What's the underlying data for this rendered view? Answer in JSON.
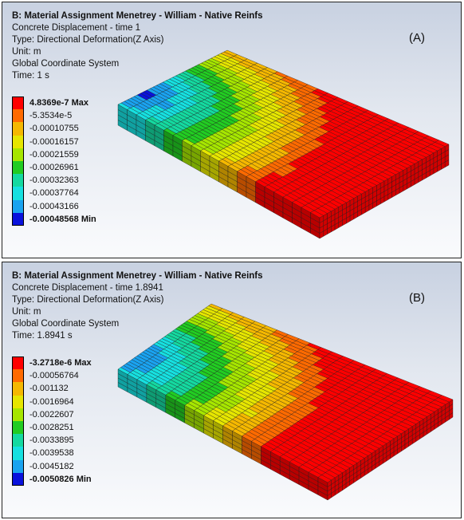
{
  "panels": [
    {
      "header": {
        "title": "B: Material Assignment Menetrey - William - Native Reinfs",
        "result": "Concrete Displacement - time 1",
        "type": "Type: Directional Deformation(Z Axis)",
        "unit": "Unit: m",
        "system": "Global Coordinate System",
        "time": "Time: 1 s"
      },
      "label": "(A)",
      "legend": [
        {
          "text": "4.8369e-7 Max",
          "color": "#ff0000"
        },
        {
          "text": "-5.3534e-5",
          "color": "#ff6a00"
        },
        {
          "text": "-0.00010755",
          "color": "#f5b800"
        },
        {
          "text": "-0.00016157",
          "color": "#e6e600"
        },
        {
          "text": "-0.00021559",
          "color": "#a6e600"
        },
        {
          "text": "-0.00026961",
          "color": "#22cc22"
        },
        {
          "text": "-0.00032363",
          "color": "#14d9a0"
        },
        {
          "text": "-0.00037764",
          "color": "#16e0e0"
        },
        {
          "text": "-0.00043166",
          "color": "#1aa3f0"
        },
        {
          "text": "-0.00048568 Min",
          "color": "#0a12dc"
        }
      ]
    },
    {
      "header": {
        "title": "B: Material Assignment Menetrey - William - Native Reinfs",
        "result": "Concrete Displacement - time 1.8941",
        "type": "Type: Directional Deformation(Z Axis)",
        "unit": "Unit: m",
        "system": "Global Coordinate System",
        "time": "Time: 1.8941 s"
      },
      "label": "(B)",
      "legend": [
        {
          "text": "-3.2718e-6 Max",
          "color": "#ff0000"
        },
        {
          "text": "-0.00056764",
          "color": "#ff6a00"
        },
        {
          "text": "-0.001132",
          "color": "#f5b800"
        },
        {
          "text": "-0.0016964",
          "color": "#e6e600"
        },
        {
          "text": "-0.0022607",
          "color": "#a6e600"
        },
        {
          "text": "-0.0028251",
          "color": "#22cc22"
        },
        {
          "text": "-0.0033895",
          "color": "#14d9a0"
        },
        {
          "text": "-0.0039538",
          "color": "#16e0e0"
        },
        {
          "text": "-0.0045182",
          "color": "#1aa3f0"
        },
        {
          "text": "-0.0050826 Min",
          "color": "#0a12dc"
        }
      ]
    }
  ]
}
